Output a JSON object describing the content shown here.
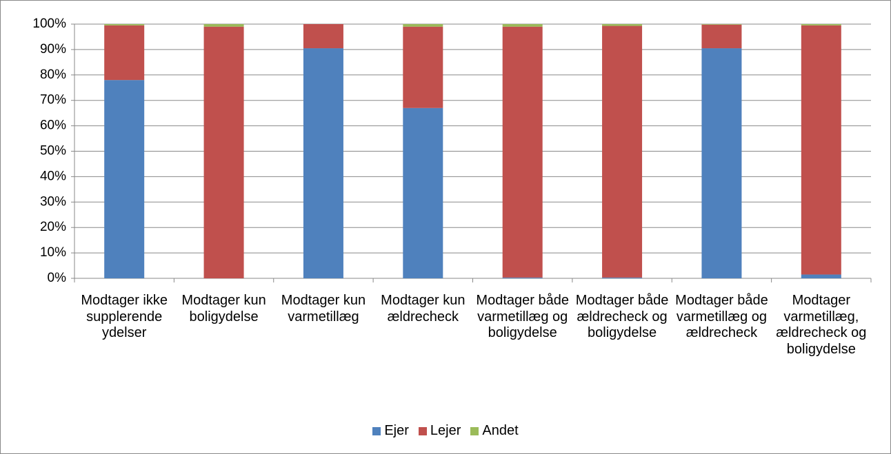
{
  "chart_data": {
    "type": "stacked_bar",
    "categories": [
      "Modtager ikke supplerende ydelser",
      "Modtager kun boligydelse",
      "Modtager kun varmetillæg",
      "Modtager kun ældrecheck",
      "Modtager både varmetillæg og boligydelse",
      "Modtager både ældrecheck og boligydelse",
      "Modtager både varmetillæg og ældrecheck",
      "Modtager varmetillæg, ældrecheck og boligydelse"
    ],
    "series": [
      {
        "name": "Ejer",
        "color": "#4f81bd",
        "values": [
          78,
          0,
          90.5,
          67,
          0.3,
          0.3,
          90.5,
          1.5
        ]
      },
      {
        "name": "Lejer",
        "color": "#c0504d",
        "values": [
          21.5,
          99,
          9.5,
          32,
          98.7,
          99,
          9.3,
          98
        ]
      },
      {
        "name": "Andet",
        "color": "#9bbb59",
        "values": [
          0.5,
          1,
          0,
          1,
          1,
          0.7,
          0.2,
          0.5
        ]
      }
    ],
    "ylim": [
      0,
      100
    ],
    "yticks": [
      {
        "value": 0,
        "label": "0%"
      },
      {
        "value": 10,
        "label": "10%"
      },
      {
        "value": 20,
        "label": "20%"
      },
      {
        "value": 30,
        "label": "30%"
      },
      {
        "value": 40,
        "label": "40%"
      },
      {
        "value": 50,
        "label": "50%"
      },
      {
        "value": 60,
        "label": "60%"
      },
      {
        "value": 70,
        "label": "70%"
      },
      {
        "value": 80,
        "label": "80%"
      },
      {
        "value": 90,
        "label": "90%"
      },
      {
        "value": 100,
        "label": "100%"
      }
    ],
    "grid": true,
    "legend": "bottom"
  }
}
